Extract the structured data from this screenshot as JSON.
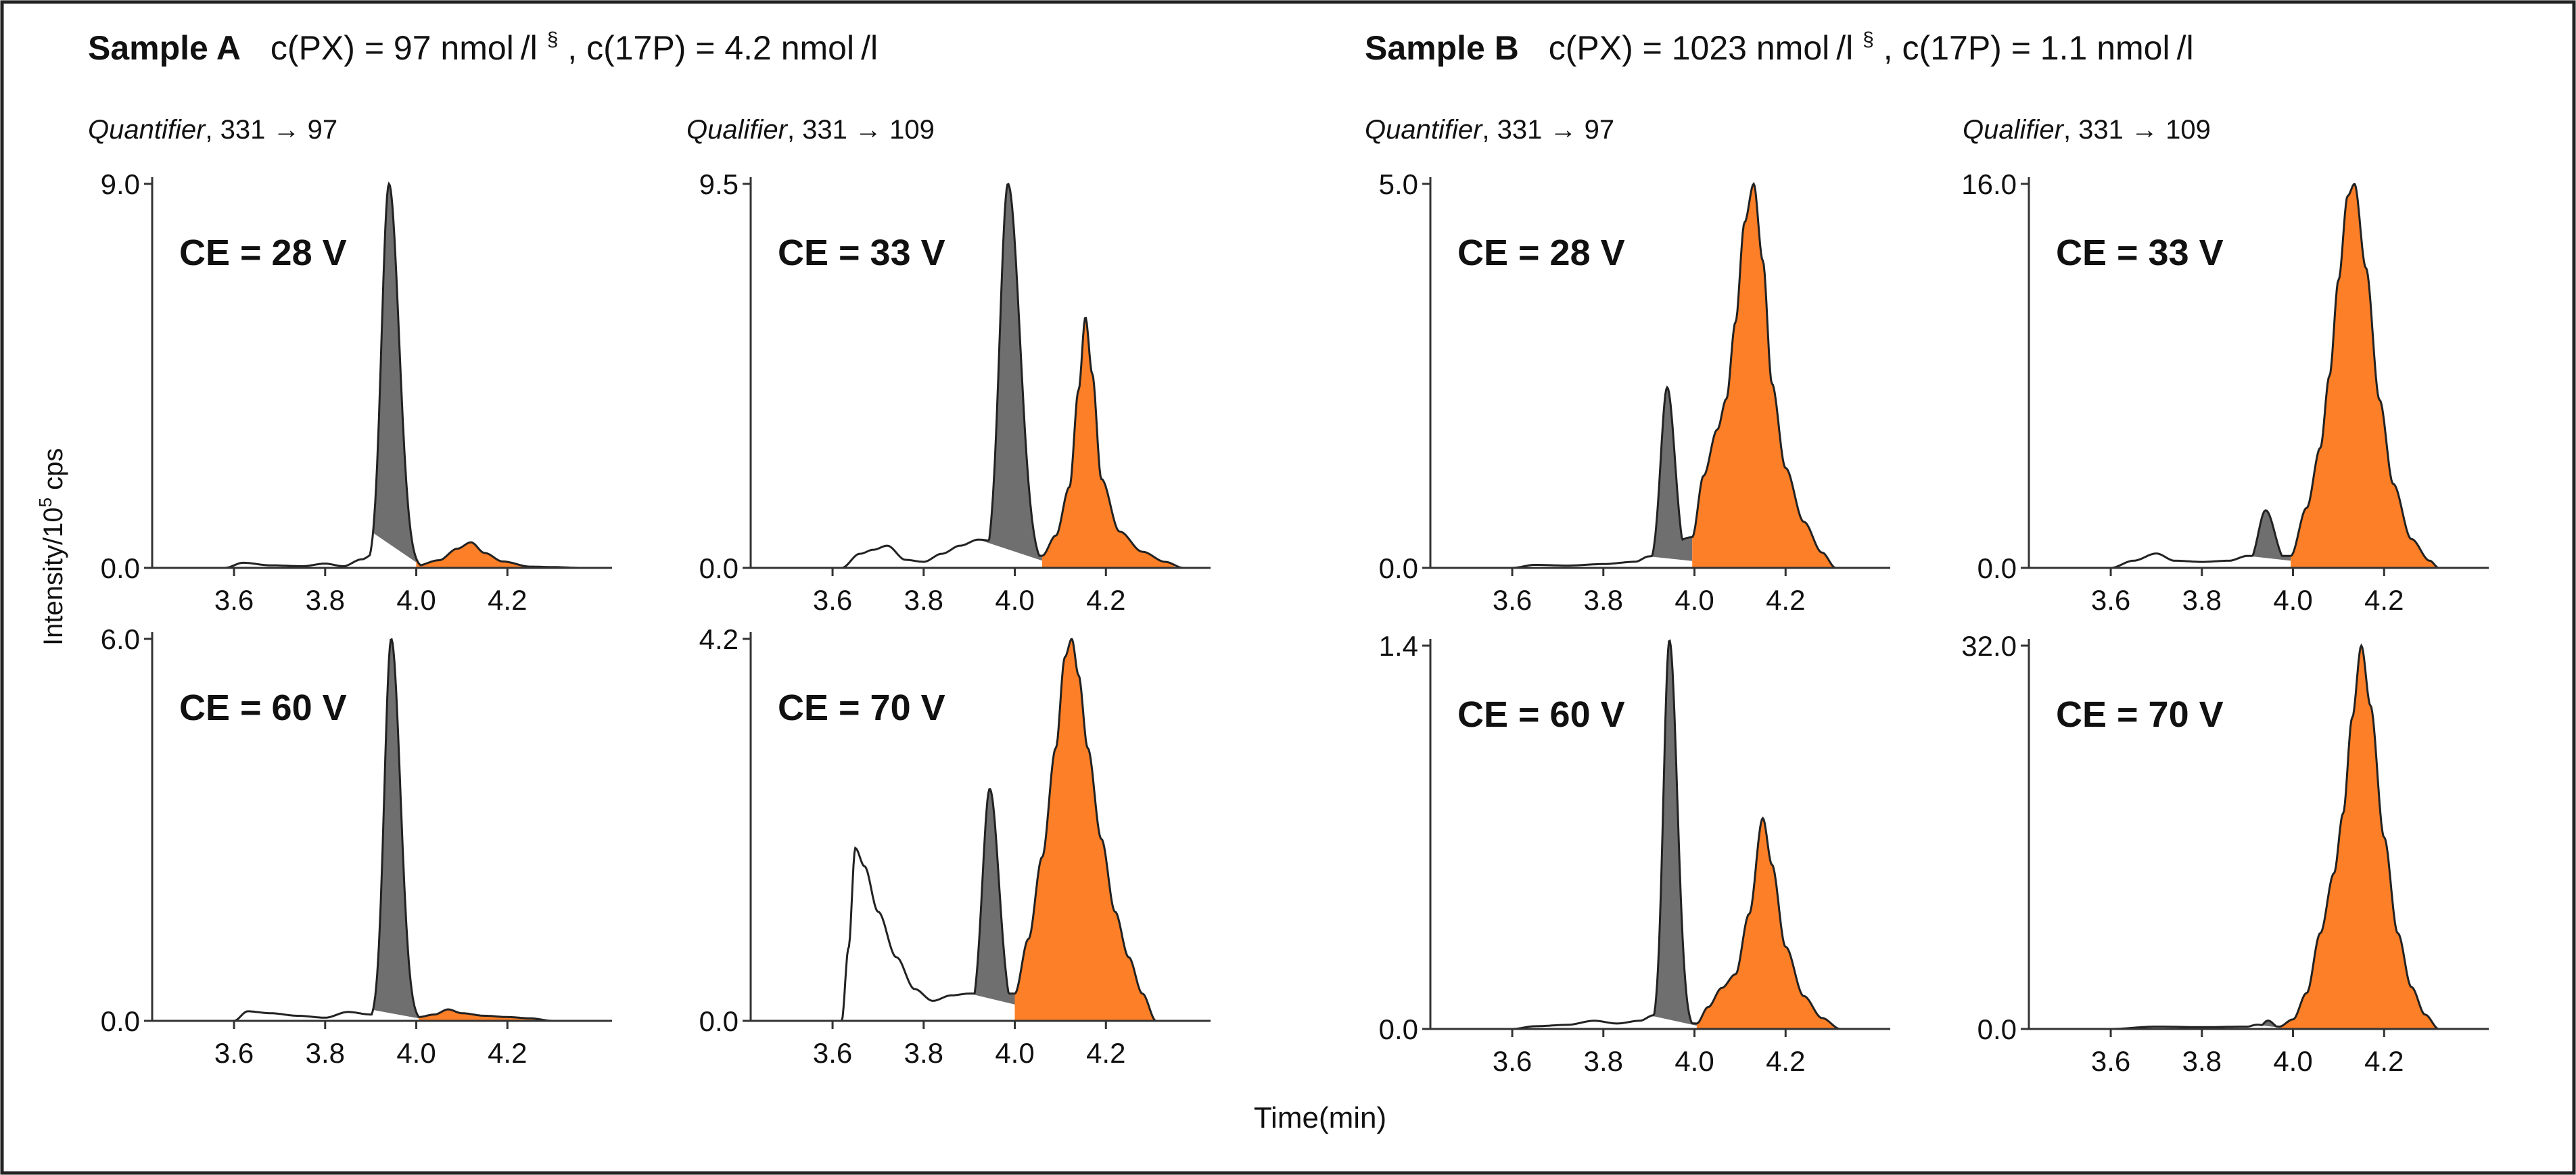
{
  "sample_a": {
    "name": "Sample A",
    "conc": "c(PX) = 97 nmol /l",
    "sup": "§",
    "conc2": ", c(17P) = 4.2 nmol /l"
  },
  "sample_b": {
    "name": "Sample B",
    "conc": "c(PX) = 1023 nmol /l",
    "sup": "§",
    "conc2": ", c(17P) = 1.1 nmol /l"
  },
  "columns": [
    {
      "label": "Quantifier",
      "transition": ", 331 → 97"
    },
    {
      "label": "Qualifier",
      "transition": ", 331 → 109"
    },
    {
      "label": "Quantifier",
      "transition": ", 331 → 97"
    },
    {
      "label": "Qualifier",
      "transition": ", 331 → 109"
    }
  ],
  "y_axis_label": {
    "pre": "Intensity/10",
    "sup": "5",
    "post": " cps"
  },
  "x_axis_label": "Time(min)",
  "colors": {
    "gray_peak": "#6f6f6f",
    "orange_peak": "#fd7f27",
    "line": "#222222"
  },
  "chart_data": [
    {
      "id": "A-quant-28",
      "type": "area",
      "ce_label": "CE = 28 V",
      "ylim": [
        0,
        9.0
      ],
      "y_ticks": [
        "0.0",
        "9.0"
      ],
      "xlim": [
        3.45,
        4.4
      ],
      "x_ticks": [
        "3.6",
        "3.8",
        "4.0",
        "4.2"
      ],
      "baseline": [
        [
          3.45,
          0
        ],
        [
          3.58,
          0
        ],
        [
          3.62,
          0.12
        ],
        [
          3.68,
          0.06
        ],
        [
          3.75,
          0.04
        ],
        [
          3.8,
          0.1
        ],
        [
          3.84,
          0.04
        ],
        [
          3.88,
          0.2
        ],
        [
          3.91,
          0.35
        ]
      ],
      "gray_peak": {
        "center": 3.94,
        "height": 9.0,
        "left_width": 0.016,
        "right_width": 0.022,
        "range": [
          3.905,
          4.0
        ]
      },
      "orange_region": {
        "range": [
          4.0,
          4.25
        ]
      },
      "orange_points": [
        [
          4.0,
          0.05
        ],
        [
          4.05,
          0.18
        ],
        [
          4.09,
          0.45
        ],
        [
          4.12,
          0.6
        ],
        [
          4.15,
          0.35
        ],
        [
          4.19,
          0.15
        ],
        [
          4.25,
          0.03
        ]
      ],
      "tail": [
        [
          4.25,
          0.03
        ],
        [
          4.3,
          0.02
        ],
        [
          4.36,
          0.0
        ]
      ]
    },
    {
      "id": "A-qual-33",
      "type": "area",
      "ce_label": "CE = 33 V",
      "ylim": [
        0,
        9.5
      ],
      "y_ticks": [
        "0.0",
        "9.5"
      ],
      "xlim": [
        3.45,
        4.4
      ],
      "x_ticks": [
        "3.6",
        "3.8",
        "4.0",
        "4.2"
      ],
      "baseline": [
        [
          3.45,
          0
        ],
        [
          3.62,
          0
        ],
        [
          3.66,
          0.35
        ],
        [
          3.69,
          0.45
        ],
        [
          3.72,
          0.55
        ],
        [
          3.76,
          0.2
        ],
        [
          3.8,
          0.15
        ],
        [
          3.84,
          0.35
        ],
        [
          3.88,
          0.55
        ],
        [
          3.92,
          0.7
        ]
      ],
      "gray_peak": {
        "center": 3.985,
        "height": 9.5,
        "left_width": 0.018,
        "right_width": 0.026,
        "range": [
          3.92,
          4.06
        ]
      },
      "orange_region": {
        "range": [
          4.06,
          4.35
        ]
      },
      "orange_points": [
        [
          4.06,
          0.3
        ],
        [
          4.09,
          0.8
        ],
        [
          4.12,
          2.0
        ],
        [
          4.14,
          4.4
        ],
        [
          4.155,
          6.2
        ],
        [
          4.17,
          4.8
        ],
        [
          4.19,
          2.2
        ],
        [
          4.23,
          0.9
        ],
        [
          4.28,
          0.4
        ],
        [
          4.33,
          0.15
        ],
        [
          4.37,
          0.0
        ]
      ],
      "tail": [
        [
          4.37,
          0.0
        ],
        [
          4.38,
          0.0
        ]
      ]
    },
    {
      "id": "B-quant-28",
      "type": "area",
      "ce_label": "CE = 28 V",
      "ylim": [
        0,
        5.0
      ],
      "y_ticks": [
        "0.0",
        "5.0"
      ],
      "xlim": [
        3.45,
        4.4
      ],
      "x_ticks": [
        "3.6",
        "3.8",
        "4.0",
        "4.2"
      ],
      "baseline": [
        [
          3.45,
          0
        ],
        [
          3.6,
          0
        ],
        [
          3.65,
          0.04
        ],
        [
          3.72,
          0.03
        ],
        [
          3.8,
          0.05
        ],
        [
          3.87,
          0.08
        ],
        [
          3.9,
          0.15
        ]
      ],
      "gray_peak": {
        "center": 3.94,
        "height": 2.35,
        "left_width": 0.014,
        "right_width": 0.017,
        "range": [
          3.9,
          3.995
        ]
      },
      "orange_region": {
        "range": [
          3.995,
          4.32
        ]
      },
      "orange_points": [
        [
          3.995,
          0.4
        ],
        [
          4.02,
          1.2
        ],
        [
          4.05,
          1.8
        ],
        [
          4.07,
          2.2
        ],
        [
          4.09,
          3.2
        ],
        [
          4.11,
          4.5
        ],
        [
          4.13,
          5.0
        ],
        [
          4.15,
          4.0
        ],
        [
          4.17,
          2.4
        ],
        [
          4.2,
          1.3
        ],
        [
          4.24,
          0.6
        ],
        [
          4.28,
          0.2
        ],
        [
          4.31,
          0.0
        ]
      ],
      "tail": [
        [
          4.31,
          0.0
        ],
        [
          4.34,
          0.0
        ]
      ]
    },
    {
      "id": "B-qual-33",
      "type": "area",
      "ce_label": "CE = 33 V",
      "ylim": [
        0,
        16.0
      ],
      "y_ticks": [
        "0.0",
        "16.0"
      ],
      "xlim": [
        3.45,
        4.4
      ],
      "x_ticks": [
        "3.6",
        "3.8",
        "4.0",
        "4.2"
      ],
      "baseline": [
        [
          3.45,
          0
        ],
        [
          3.6,
          0
        ],
        [
          3.65,
          0.3
        ],
        [
          3.7,
          0.6
        ],
        [
          3.74,
          0.3
        ],
        [
          3.8,
          0.25
        ],
        [
          3.86,
          0.3
        ],
        [
          3.9,
          0.5
        ]
      ],
      "gray_peak": {
        "center": 3.94,
        "height": 2.4,
        "left_width": 0.016,
        "right_width": 0.02,
        "range": [
          3.9,
          3.995
        ]
      },
      "orange_region": {
        "range": [
          3.995,
          4.32
        ]
      },
      "orange_points": [
        [
          3.995,
          0.5
        ],
        [
          4.03,
          2.5
        ],
        [
          4.06,
          5.0
        ],
        [
          4.08,
          8.0
        ],
        [
          4.1,
          12.0
        ],
        [
          4.12,
          15.5
        ],
        [
          4.135,
          16.0
        ],
        [
          4.16,
          12.5
        ],
        [
          4.19,
          7.0
        ],
        [
          4.22,
          3.5
        ],
        [
          4.26,
          1.2
        ],
        [
          4.3,
          0.3
        ],
        [
          4.32,
          0.0
        ]
      ],
      "tail": [
        [
          4.32,
          0.0
        ],
        [
          4.34,
          0.0
        ]
      ]
    },
    {
      "id": "A-quant-60",
      "type": "area",
      "ce_label": "CE = 60 V",
      "ylim": [
        0,
        6.0
      ],
      "y_ticks": [
        "0.0",
        "6.0"
      ],
      "xlim": [
        3.45,
        4.4
      ],
      "x_ticks": [
        "3.6",
        "3.8",
        "4.0",
        "4.2"
      ],
      "baseline": [
        [
          3.45,
          0
        ],
        [
          3.6,
          0
        ],
        [
          3.63,
          0.15
        ],
        [
          3.68,
          0.12
        ],
        [
          3.74,
          0.08
        ],
        [
          3.8,
          0.05
        ],
        [
          3.85,
          0.14
        ],
        [
          3.9,
          0.1
        ]
      ],
      "gray_peak": {
        "center": 3.945,
        "height": 6.0,
        "left_width": 0.015,
        "right_width": 0.02,
        "range": [
          3.905,
          4.005
        ]
      },
      "orange_region": {
        "range": [
          4.005,
          4.3
        ]
      },
      "orange_points": [
        [
          4.005,
          0.06
        ],
        [
          4.04,
          0.1
        ],
        [
          4.07,
          0.18
        ],
        [
          4.1,
          0.12
        ],
        [
          4.15,
          0.08
        ],
        [
          4.2,
          0.06
        ],
        [
          4.25,
          0.04
        ],
        [
          4.3,
          0.0
        ]
      ],
      "tail": [
        [
          4.3,
          0.0
        ],
        [
          4.36,
          0.0
        ]
      ]
    },
    {
      "id": "A-qual-70",
      "type": "area",
      "ce_label": "CE = 70 V",
      "ylim": [
        0,
        4.2
      ],
      "y_ticks": [
        "0.0",
        "4.2"
      ],
      "xlim": [
        3.45,
        4.4
      ],
      "x_ticks": [
        "3.6",
        "3.8",
        "4.0",
        "4.2"
      ],
      "baseline": [
        [
          3.45,
          0
        ],
        [
          3.62,
          0
        ],
        [
          3.635,
          0.8
        ],
        [
          3.65,
          1.9
        ],
        [
          3.67,
          1.7
        ],
        [
          3.7,
          1.2
        ],
        [
          3.74,
          0.7
        ],
        [
          3.78,
          0.35
        ],
        [
          3.82,
          0.22
        ],
        [
          3.86,
          0.28
        ],
        [
          3.9,
          0.3
        ]
      ],
      "gray_peak": {
        "center": 3.945,
        "height": 2.55,
        "left_width": 0.016,
        "right_width": 0.02,
        "range": [
          3.9,
          4.0
        ]
      },
      "orange_region": {
        "range": [
          4.0,
          4.31
        ]
      },
      "orange_points": [
        [
          4.0,
          0.3
        ],
        [
          4.03,
          0.9
        ],
        [
          4.06,
          1.8
        ],
        [
          4.09,
          3.0
        ],
        [
          4.11,
          4.0
        ],
        [
          4.125,
          4.2
        ],
        [
          4.14,
          3.8
        ],
        [
          4.16,
          3.0
        ],
        [
          4.19,
          2.0
        ],
        [
          4.22,
          1.2
        ],
        [
          4.25,
          0.7
        ],
        [
          4.28,
          0.3
        ],
        [
          4.31,
          0.0
        ]
      ],
      "tail": [
        [
          4.31,
          0.0
        ],
        [
          4.36,
          0.0
        ]
      ]
    },
    {
      "id": "B-quant-60",
      "type": "area",
      "ce_label": "CE = 60 V",
      "ylim": [
        0,
        1.4
      ],
      "y_ticks": [
        "0.0",
        "1.4"
      ],
      "xlim": [
        3.45,
        4.4
      ],
      "x_ticks": [
        "3.6",
        "3.8",
        "4.0",
        "4.2"
      ],
      "baseline": [
        [
          3.45,
          0
        ],
        [
          3.6,
          0
        ],
        [
          3.65,
          0.01
        ],
        [
          3.72,
          0.015
        ],
        [
          3.78,
          0.03
        ],
        [
          3.83,
          0.02
        ],
        [
          3.88,
          0.03
        ],
        [
          3.91,
          0.05
        ]
      ],
      "gray_peak": {
        "center": 3.945,
        "height": 1.42,
        "left_width": 0.013,
        "right_width": 0.017,
        "range": [
          3.905,
          4.005
        ]
      },
      "orange_region": {
        "range": [
          4.005,
          4.33
        ]
      },
      "orange_points": [
        [
          4.005,
          0.02
        ],
        [
          4.03,
          0.08
        ],
        [
          4.06,
          0.15
        ],
        [
          4.09,
          0.2
        ],
        [
          4.12,
          0.42
        ],
        [
          4.15,
          0.77
        ],
        [
          4.17,
          0.6
        ],
        [
          4.2,
          0.3
        ],
        [
          4.24,
          0.12
        ],
        [
          4.28,
          0.04
        ],
        [
          4.32,
          0.0
        ]
      ],
      "tail": [
        [
          4.32,
          0.0
        ],
        [
          4.36,
          0.0
        ]
      ]
    },
    {
      "id": "B-qual-70",
      "type": "area",
      "ce_label": "CE = 70 V",
      "ylim": [
        0,
        32.0
      ],
      "y_ticks": [
        "0.0",
        "32.0"
      ],
      "xlim": [
        3.45,
        4.4
      ],
      "x_ticks": [
        "3.6",
        "3.8",
        "4.0",
        "4.2"
      ],
      "baseline": [
        [
          3.45,
          0
        ],
        [
          3.6,
          0
        ],
        [
          3.7,
          0.2
        ],
        [
          3.8,
          0.15
        ],
        [
          3.9,
          0.2
        ],
        [
          3.92,
          0.35
        ]
      ],
      "gray_peak": {
        "center": 3.945,
        "height": 0.7,
        "left_width": 0.01,
        "right_width": 0.012,
        "range": [
          3.92,
          3.97
        ]
      },
      "orange_region": {
        "range": [
          3.97,
          4.32
        ]
      },
      "orange_points": [
        [
          3.97,
          0.2
        ],
        [
          4.0,
          0.8
        ],
        [
          4.03,
          3.0
        ],
        [
          4.06,
          8.0
        ],
        [
          4.09,
          13.0
        ],
        [
          4.11,
          18.0
        ],
        [
          4.13,
          26.0
        ],
        [
          4.15,
          32.0
        ],
        [
          4.17,
          27.0
        ],
        [
          4.2,
          16.0
        ],
        [
          4.23,
          8.0
        ],
        [
          4.26,
          3.5
        ],
        [
          4.29,
          1.2
        ],
        [
          4.32,
          0.0
        ]
      ],
      "tail": [
        [
          4.32,
          0.0
        ],
        [
          4.34,
          0.0
        ]
      ]
    }
  ]
}
